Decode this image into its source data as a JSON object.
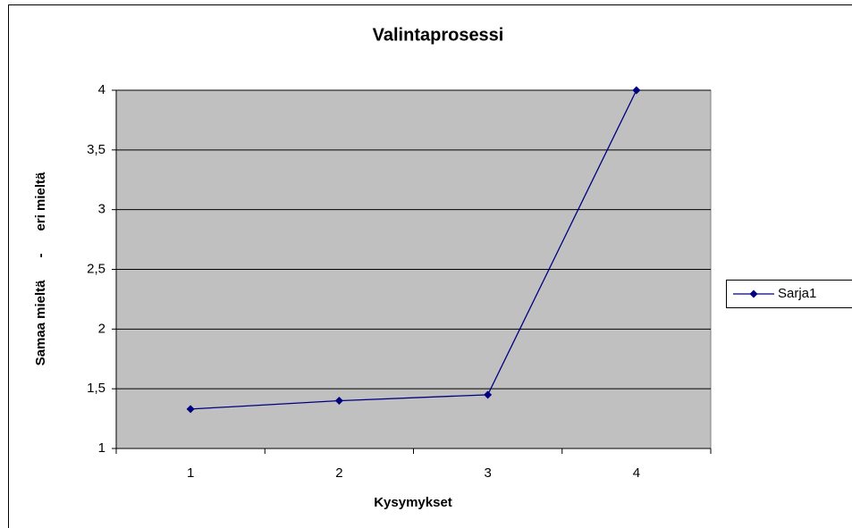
{
  "chart_data": {
    "type": "line",
    "title": "Valintaprosessi",
    "x_label": "Kysymykset",
    "y_label": "Samaa mieltä      -      eri mieltä",
    "categories": [
      "1",
      "2",
      "3",
      "4"
    ],
    "series": [
      {
        "name": "Sarja1",
        "color": "#000080",
        "values": [
          1.33,
          1.4,
          1.45,
          4
        ]
      }
    ],
    "ylim": [
      1,
      4
    ],
    "yticks": [
      1,
      {
        "value": 1.5,
        "label": "1,5"
      },
      2,
      {
        "value": 2.5,
        "label": "2,5"
      },
      3,
      {
        "value": 3.5,
        "label": "3,5"
      },
      4
    ],
    "grid": true,
    "legend": "right"
  }
}
